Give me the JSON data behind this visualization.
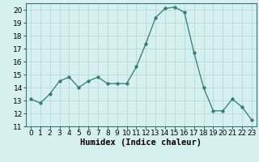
{
  "x": [
    0,
    1,
    2,
    3,
    4,
    5,
    6,
    7,
    8,
    9,
    10,
    11,
    12,
    13,
    14,
    15,
    16,
    17,
    18,
    19,
    20,
    21,
    22,
    23
  ],
  "y": [
    13.1,
    12.8,
    13.5,
    14.5,
    14.8,
    14.0,
    14.5,
    14.8,
    14.3,
    14.3,
    14.3,
    15.6,
    17.4,
    19.4,
    20.1,
    20.2,
    19.8,
    16.7,
    14.0,
    12.2,
    12.2,
    13.1,
    12.5,
    11.5
  ],
  "line_color": "#2e7d6e",
  "marker": "o",
  "marker_size": 2.5,
  "background_color": "#d6f0f0",
  "grid_color": "#b8d8d8",
  "xlabel": "Humidex (Indice chaleur)",
  "xlim": [
    -0.5,
    23.5
  ],
  "ylim": [
    11,
    20.5
  ],
  "yticks": [
    11,
    12,
    13,
    14,
    15,
    16,
    17,
    18,
    19,
    20
  ],
  "xticks": [
    0,
    1,
    2,
    3,
    4,
    5,
    6,
    7,
    8,
    9,
    10,
    11,
    12,
    13,
    14,
    15,
    16,
    17,
    18,
    19,
    20,
    21,
    22,
    23
  ],
  "tick_fontsize": 6.5,
  "xlabel_fontsize": 7.5
}
